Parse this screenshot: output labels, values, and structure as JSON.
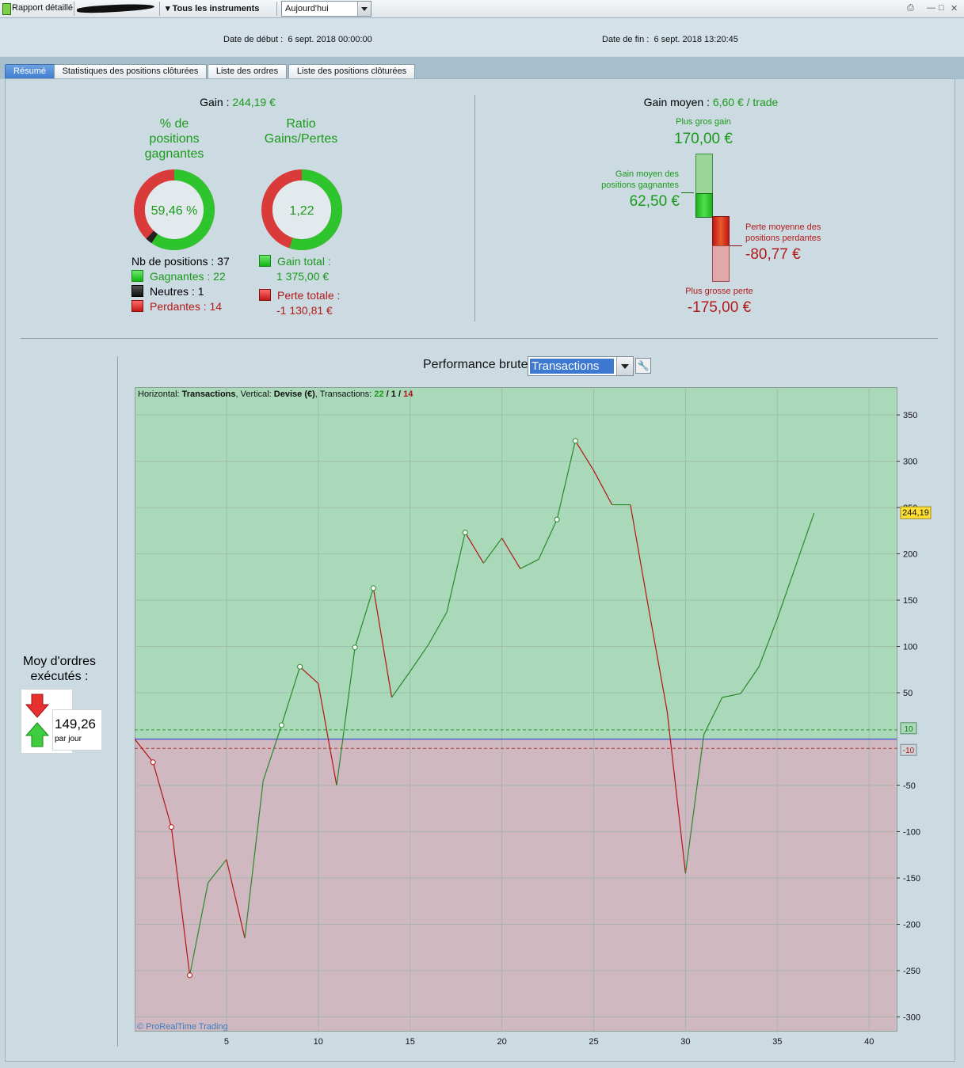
{
  "toolbar": {
    "report_label": "Rapport détaillé",
    "instruments_label": "Tous les instruments",
    "period_value": "Aujourd'hui"
  },
  "dates": {
    "start_label": "Date de début :",
    "start_value": "6 sept. 2018 00:00:00",
    "end_label": "Date de fin :",
    "end_value": "6 sept. 2018 13:20:45"
  },
  "tabs": [
    {
      "label": "Résumé",
      "active": true
    },
    {
      "label": "Statistiques des positions clôturées",
      "active": false
    },
    {
      "label": "Liste des ordres",
      "active": false
    },
    {
      "label": "Liste des positions clôturées",
      "active": false
    }
  ],
  "summary": {
    "gain_label": "Gain :",
    "gain_value": "244,19 €",
    "win_pct_title": "% de positions gagnantes",
    "win_pct_value": "59,46 %",
    "ratio_title": "Ratio Gains/Pertes",
    "ratio_value": "1,22",
    "nb_positions_label": "Nb de positions : 37",
    "winners_label": "Gagnantes : 22",
    "neutral_label": "Neutres : 1",
    "losers_label": "Perdantes : 14",
    "total_gain_label": "Gain total :",
    "total_gain_value": "1 375,00 €",
    "total_loss_label": "Perte totale :",
    "total_loss_value": "-1 130,81 €",
    "win_fraction": 0.5946,
    "neutral_fraction": 0.027,
    "ratio_gain_fraction": 0.549
  },
  "average_gain": {
    "label": "Gain moyen :",
    "value": "6,60 € / trade",
    "biggest_gain_label": "Plus gros gain",
    "biggest_gain_value": "170,00 €",
    "avg_win_label_1": "Gain moyen des",
    "avg_win_label_2": "positions gagnantes",
    "avg_win_value": "62,50 €",
    "avg_loss_label_1": "Perte moyenne des",
    "avg_loss_label_2": "positions perdantes",
    "avg_loss_value": "-80,77 €",
    "biggest_loss_label": "Plus grosse perte",
    "biggest_loss_value": "-175,00 €"
  },
  "orders": {
    "label_1": "Moy d'ordres",
    "label_2": "exécutés :",
    "value": "149,26",
    "unit": "par jour"
  },
  "performance": {
    "title": "Performance brute",
    "select_value": "Transactions"
  },
  "chart_data": {
    "type": "line",
    "header": {
      "h_label": "Horizontal: ",
      "h_value": "Transactions",
      "v_label": ", Vertical: ",
      "v_value": "Devise (€)",
      "t_label": ", Transactions: ",
      "wins": "22",
      "s1": " / ",
      "neutral": "1",
      "s2": " / ",
      "losses": "14"
    },
    "watermark": "© ProRealTime Trading",
    "x": [
      0,
      1,
      2,
      3,
      4,
      5,
      6,
      7,
      8,
      9,
      10,
      11,
      12,
      13,
      14,
      15,
      16,
      17,
      18,
      19,
      20,
      21,
      22,
      23,
      24,
      25,
      26,
      27,
      28,
      29,
      30,
      31,
      32,
      33,
      34,
      35,
      36,
      37
    ],
    "y": [
      0,
      -25,
      -95,
      -255,
      -155,
      -130,
      -215,
      -45,
      15,
      78,
      60,
      -50,
      99,
      163,
      45,
      73,
      102,
      137,
      223,
      190,
      217,
      184,
      194,
      237,
      322,
      290,
      253,
      253,
      140,
      30,
      -145,
      5,
      45,
      49,
      78,
      130,
      187,
      244
    ],
    "markers": [
      1,
      2,
      3,
      8,
      9,
      12,
      13,
      18,
      23,
      24
    ],
    "xticks": [
      5,
      10,
      15,
      20,
      25,
      30,
      35,
      40
    ],
    "yticks": [
      350,
      300,
      250,
      200,
      150,
      100,
      50,
      -50,
      -100,
      -150,
      -200,
      -250,
      -300
    ],
    "xlim": [
      0,
      41.5
    ],
    "ylim": [
      -315,
      380
    ],
    "upper_band": 10,
    "lower_band": -10,
    "upper_band_label": "10",
    "lower_band_label": "-10",
    "last_value_label": "244,19",
    "colors": {
      "gain": "#2a8a2a",
      "loss": "#b41414",
      "gain_bg": "#a9d9b8",
      "loss_bg": "#cfb8bf"
    }
  }
}
